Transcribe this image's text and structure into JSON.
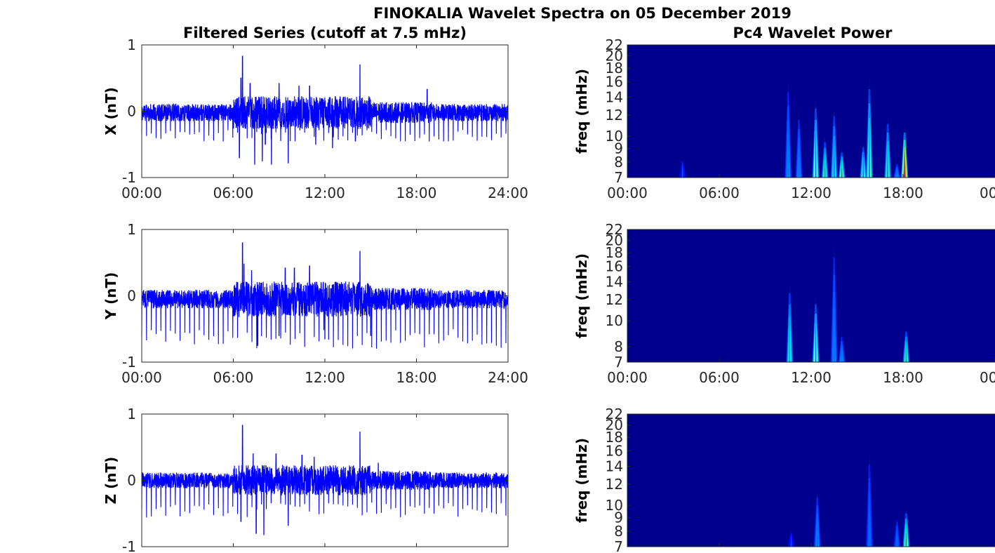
{
  "suptitle": "FINOKALIA Wavelet Spectra on 05 December 2019",
  "left_title": "Filtered Series (cutoff at 7.5 mHz)",
  "right_title": "Pc4 Wavelet Power",
  "colors": {
    "trace": "#0000ff",
    "power_bg": "#00008f"
  },
  "chart_data": [
    {
      "type": "line",
      "panel": "X",
      "ylabel": "X (nT)",
      "ylim": [
        -1,
        1
      ],
      "yticks": [
        "1",
        "0",
        "-1"
      ],
      "xlim": [
        0,
        24
      ],
      "xticks": [
        "00:00",
        "06:00",
        "12:00",
        "18:00",
        "24:00"
      ],
      "baseline": -0.02,
      "noise": 0.13,
      "peaks": [
        {
          "t": 6.6,
          "v": 0.83
        },
        {
          "t": 6.5,
          "v": 0.5
        },
        {
          "t": 6.4,
          "v": -0.7
        },
        {
          "t": 7.1,
          "v": 0.42
        },
        {
          "t": 7.4,
          "v": -0.8
        },
        {
          "t": 7.9,
          "v": -0.75
        },
        {
          "t": 8.1,
          "v": -0.5
        },
        {
          "t": 8.5,
          "v": -0.8
        },
        {
          "t": 9.0,
          "v": 0.42
        },
        {
          "t": 9.6,
          "v": -0.78
        },
        {
          "t": 10.3,
          "v": 0.38
        },
        {
          "t": 11.0,
          "v": 0.38
        },
        {
          "t": 11.4,
          "v": -0.5
        },
        {
          "t": 12.5,
          "v": -0.55
        },
        {
          "t": 14.3,
          "v": 0.7
        },
        {
          "t": 14.0,
          "v": -0.45
        },
        {
          "t": 18.7,
          "v": 0.33
        }
      ],
      "period_dips": 0.35
    },
    {
      "type": "line",
      "panel": "Y",
      "ylabel": "Y (nT)",
      "ylim": [
        -1,
        1
      ],
      "yticks": [
        "1",
        "0",
        "-1"
      ],
      "xlim": [
        0,
        24
      ],
      "xticks": [
        "00:00",
        "06:00",
        "12:00",
        "18:00",
        "24:00"
      ],
      "baseline": -0.05,
      "noise": 0.14,
      "peaks": [
        {
          "t": 6.6,
          "v": 0.8
        },
        {
          "t": 6.7,
          "v": 0.48
        },
        {
          "t": 7.6,
          "v": -0.75
        },
        {
          "t": 7.2,
          "v": 0.38
        },
        {
          "t": 9.0,
          "v": -0.6
        },
        {
          "t": 9.4,
          "v": 0.42
        },
        {
          "t": 10.0,
          "v": 0.42
        },
        {
          "t": 11.0,
          "v": 0.45
        },
        {
          "t": 12.0,
          "v": -0.65
        },
        {
          "t": 14.3,
          "v": 0.67
        },
        {
          "t": 15.0,
          "v": -0.6
        }
      ],
      "period_dips": 0.6
    },
    {
      "type": "line",
      "panel": "Z",
      "ylabel": "Z (nT)",
      "ylim": [
        -1,
        1
      ],
      "yticks": [
        "1",
        "0",
        "-1"
      ],
      "xlim": [
        0,
        24
      ],
      "xticks": [],
      "baseline": 0.0,
      "noise": 0.12,
      "peaks": [
        {
          "t": 6.6,
          "v": 0.83
        },
        {
          "t": 6.5,
          "v": 0.48
        },
        {
          "t": 6.5,
          "v": -0.62
        },
        {
          "t": 7.3,
          "v": 0.4
        },
        {
          "t": 7.5,
          "v": -0.8
        },
        {
          "t": 8.0,
          "v": -0.82
        },
        {
          "t": 8.8,
          "v": 0.4
        },
        {
          "t": 9.6,
          "v": -0.68
        },
        {
          "t": 10.5,
          "v": 0.38
        },
        {
          "t": 11.3,
          "v": 0.35
        },
        {
          "t": 14.3,
          "v": 0.73
        },
        {
          "t": 15.5,
          "v": 0.26
        }
      ],
      "period_dips": 0.45
    },
    {
      "type": "heatmap",
      "panel": "X power",
      "ylabel": "freq (mHz)",
      "yticks": [
        22,
        20,
        18,
        16,
        14,
        12,
        10,
        9,
        8,
        7
      ],
      "ylim": [
        7,
        22
      ],
      "xlim": [
        0,
        24
      ],
      "xticks": [
        "00:00",
        "06:00",
        "12:00",
        "18:00",
        "00"
      ],
      "bursts": [
        {
          "t": 3.6,
          "fmax": 8.2,
          "level": 0.15
        },
        {
          "t": 10.5,
          "fmax": 16.5,
          "level": 0.3
        },
        {
          "t": 11.2,
          "fmax": 12.5,
          "level": 0.3
        },
        {
          "t": 12.3,
          "fmax": 14.0,
          "level": 0.6
        },
        {
          "t": 12.9,
          "fmax": 10.0,
          "level": 0.5
        },
        {
          "t": 13.5,
          "fmax": 13.0,
          "level": 0.45
        },
        {
          "t": 14.0,
          "fmax": 9.0,
          "level": 0.55
        },
        {
          "t": 15.4,
          "fmax": 9.5,
          "level": 0.5
        },
        {
          "t": 15.8,
          "fmax": 17.0,
          "level": 0.55
        },
        {
          "t": 17.0,
          "fmax": 12.0,
          "level": 0.5
        },
        {
          "t": 17.6,
          "fmax": 8.0,
          "level": 0.3
        },
        {
          "t": 18.1,
          "fmax": 11.0,
          "level": 0.9
        }
      ]
    },
    {
      "type": "heatmap",
      "panel": "Y power",
      "ylabel": "freq (mHz)",
      "yticks": [
        22,
        20,
        18,
        16,
        14,
        12,
        10,
        8,
        7
      ],
      "ylim": [
        7,
        22
      ],
      "xlim": [
        0,
        24
      ],
      "xticks": [
        "00:00",
        "06:00",
        "12:00",
        "18:00",
        "00"
      ],
      "bursts": [
        {
          "t": 10.6,
          "fmax": 14.0,
          "level": 0.45
        },
        {
          "t": 12.3,
          "fmax": 12.5,
          "level": 0.6
        },
        {
          "t": 13.5,
          "fmax": 20.0,
          "level": 0.3
        },
        {
          "t": 14.0,
          "fmax": 9.0,
          "level": 0.3
        },
        {
          "t": 18.2,
          "fmax": 9.5,
          "level": 0.5
        }
      ]
    },
    {
      "type": "heatmap",
      "panel": "Z power",
      "ylabel": "freq (mHz)",
      "yticks": [
        22,
        20,
        18,
        16,
        14,
        12,
        10,
        9,
        8,
        7
      ],
      "ylim": [
        7,
        22
      ],
      "xlim": [
        0,
        24
      ],
      "xticks": [],
      "bursts": [
        {
          "t": 10.7,
          "fmax": 8.0,
          "level": 0.15
        },
        {
          "t": 12.4,
          "fmax": 11.5,
          "level": 0.3
        },
        {
          "t": 15.8,
          "fmax": 16.0,
          "level": 0.25
        },
        {
          "t": 17.6,
          "fmax": 9.0,
          "level": 0.25
        },
        {
          "t": 18.2,
          "fmax": 9.8,
          "level": 0.55
        }
      ]
    }
  ]
}
